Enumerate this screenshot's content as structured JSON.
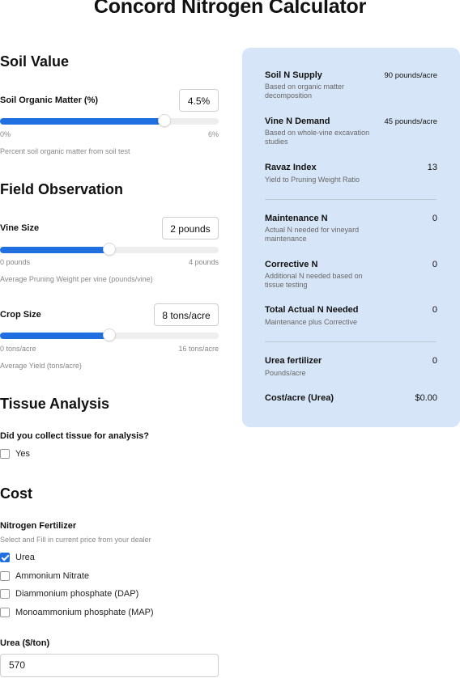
{
  "title": "Concord Nitrogen Calculator",
  "soil": {
    "section_title": "Soil Value",
    "label": "Soil Organic Matter (%)",
    "value": "4.5%",
    "min_label": "0%",
    "max_label": "6%",
    "fraction": 0.75,
    "help": "Percent soil organic matter from soil test"
  },
  "field": {
    "section_title": "Field Observation",
    "vine": {
      "label": "Vine Size",
      "value": "2 pounds",
      "min_label": "0 pounds",
      "max_label": "4 pounds",
      "fraction": 0.5,
      "help": "Average Pruning Weight per vine (pounds/vine)"
    },
    "crop": {
      "label": "Crop Size",
      "value": "8 tons/acre",
      "min_label": "0 tons/acre",
      "max_label": "16 tons/acre",
      "fraction": 0.5,
      "help": "Average Yield (tons/acre)"
    }
  },
  "tissue": {
    "section_title": "Tissue Analysis",
    "question": "Did you collect tissue for analysis?",
    "yes_label": "Yes",
    "yes_checked": false
  },
  "cost": {
    "section_title": "Cost",
    "fertilizer_label": "Nitrogen Fertilizer",
    "fertilizer_help": "Select and Fill in current price from your dealer",
    "options": [
      {
        "label": "Urea",
        "checked": true
      },
      {
        "label": "Ammonium Nitrate",
        "checked": false
      },
      {
        "label": "Diammonium phosphate (DAP)",
        "checked": false
      },
      {
        "label": "Monoammonium phosphate (MAP)",
        "checked": false
      }
    ],
    "price_label": "Urea ($/ton)",
    "price_value": "570"
  },
  "summary": {
    "soil_n_supply": {
      "label": "Soil N Supply",
      "desc": "Based on organic matter decomposition",
      "value": "90 pounds/acre"
    },
    "vine_n_demand": {
      "label": "Vine N Demand",
      "desc": "Based on whole-vine excavation studies",
      "value": "45 pounds/acre"
    },
    "ravaz_index": {
      "label": "Ravaz Index",
      "desc": "Yield to Pruning Weight Ratio",
      "value": "13"
    },
    "maintenance_n": {
      "label": "Maintenance N",
      "desc": "Actual N needed for vineyard maintenance",
      "value": "0"
    },
    "corrective_n": {
      "label": "Corrective N",
      "desc": "Additional N needed based on tissue testing",
      "value": "0"
    },
    "total_n": {
      "label": "Total Actual N Needed",
      "desc": "Maintenance plus Corrective",
      "value": "0"
    },
    "urea_fertilizer": {
      "label": "Urea fertilizer",
      "desc": "Pounds/acre",
      "value": "0"
    },
    "cost_per_acre": {
      "label": "Cost/acre (Urea)",
      "value": "$0.00"
    }
  }
}
